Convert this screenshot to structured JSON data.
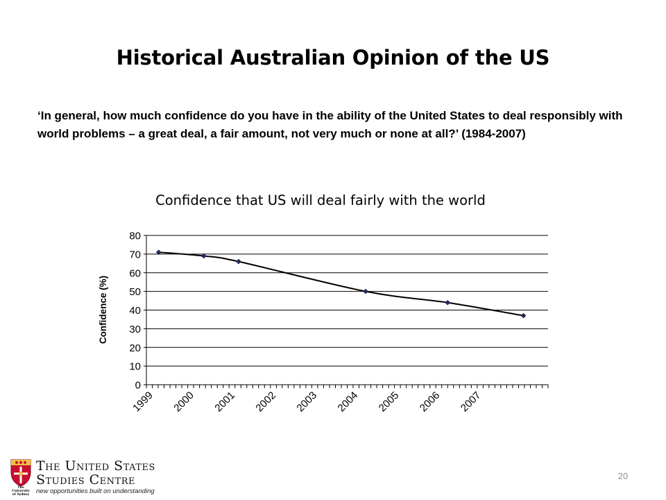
{
  "slide": {
    "title": "Historical Australian Opinion of the US",
    "question": "‘In general, how much confidence do you have in the ability of the United States to deal responsibly with world problems – a great deal, a fair amount, not very much or none at all?’ (1984-2007)",
    "page_number": "20"
  },
  "branding": {
    "crest_caption": [
      "The",
      "University",
      "of Sydney"
    ],
    "org_name_line1": "The United States",
    "org_name_line2": "Studies Centre",
    "tagline": "new opportunities built on understanding"
  },
  "chart_data": {
    "type": "line",
    "title": "Confidence that US will deal fairly with the world",
    "xlabel": "",
    "ylabel": "Confidence (%)",
    "x_tick_labels": [
      "1999",
      "2000",
      "2001",
      "2002",
      "2003",
      "2004",
      "2005",
      "2006",
      "2007"
    ],
    "ylim": [
      0,
      80
    ],
    "y_ticks": [
      0,
      10,
      20,
      30,
      40,
      50,
      60,
      70,
      80
    ],
    "grid": true,
    "series": [
      {
        "x": [
          1999.3,
          2000.4,
          2001.25,
          2004.35,
          2006.35,
          2008.2
        ],
        "values": [
          71,
          69,
          66,
          50,
          44,
          37
        ]
      }
    ],
    "colors": {
      "line": "#000000",
      "marker": "#1f2a6b",
      "grid": "#000000"
    }
  }
}
